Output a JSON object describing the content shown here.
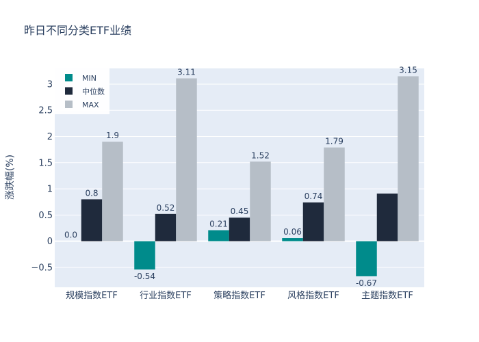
{
  "chart_data": {
    "type": "bar",
    "title": "昨日不同分类ETF业绩",
    "xlabel": "",
    "ylabel": "涨跌幅(%)",
    "ylim": [
      -0.88,
      3.3
    ],
    "yticks": [
      -0.5,
      0,
      0.5,
      1,
      1.5,
      2,
      2.5,
      3
    ],
    "ytick_labels": [
      "−0.5",
      "0",
      "0.5",
      "1",
      "1.5",
      "2",
      "2.5",
      "3"
    ],
    "categories": [
      "规模指数ETF",
      "行业指数ETF",
      "策略指数ETF",
      "风格指数ETF",
      "主题指数ETF"
    ],
    "series": [
      {
        "name": "MIN",
        "color": "#008b8b",
        "values": [
          0.0,
          -0.54,
          0.21,
          0.06,
          -0.67
        ],
        "labels": [
          "0.0",
          "-0.54",
          "0.21",
          "0.06",
          "-0.67"
        ]
      },
      {
        "name": "中位数",
        "color": "#1f2a3c",
        "values": [
          0.8,
          0.52,
          0.45,
          0.74,
          0.91
        ],
        "labels": [
          "0.8",
          "0.52",
          "0.45",
          "0.74",
          ""
        ]
      },
      {
        "name": "MAX",
        "color": "#b6bec7",
        "values": [
          1.9,
          3.11,
          1.52,
          1.79,
          3.15
        ],
        "labels": [
          "1.9",
          "3.11",
          "1.52",
          "1.79",
          "3.15"
        ]
      }
    ],
    "legend": "top-left",
    "grid": true
  }
}
